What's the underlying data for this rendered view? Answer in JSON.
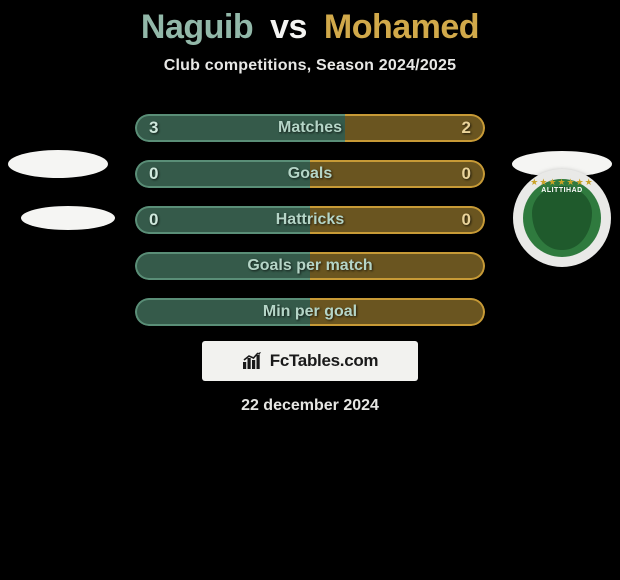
{
  "title": {
    "player1": "Naguib",
    "vs": "vs",
    "player2": "Mohamed"
  },
  "subtitle": "Club competitions, Season 2024/2025",
  "colors": {
    "left_border": "#5a8e77",
    "left_fill": "#355a4a",
    "right_border": "#c79a36",
    "right_fill": "#6a5520",
    "label": "#b5d5c7",
    "title_p1": "#92b8a9",
    "title_p2": "#d1a94a",
    "bg": "#000000"
  },
  "rows": [
    {
      "key": "matches",
      "label": "Matches",
      "left_val": "3",
      "right_val": "2",
      "left_share": 0.6,
      "right_share": 0.4
    },
    {
      "key": "goals",
      "label": "Goals",
      "left_val": "0",
      "right_val": "0",
      "left_share": 0.5,
      "right_share": 0.5
    },
    {
      "key": "hattricks",
      "label": "Hattricks",
      "left_val": "0",
      "right_val": "0",
      "left_share": 0.5,
      "right_share": 0.5
    },
    {
      "key": "goals-per-match",
      "label": "Goals per match",
      "left_val": "",
      "right_val": "",
      "left_share": 0.5,
      "right_share": 0.5
    },
    {
      "key": "min-per-goal",
      "label": "Min per goal",
      "left_val": "",
      "right_val": "",
      "left_share": 0.5,
      "right_share": 0.5
    }
  ],
  "emblem": {
    "text": "ALITTIHAD",
    "ring_color": "#2f7a3e",
    "shield_color": "#1f5a2c",
    "stars_color": "#c9a227"
  },
  "footer": {
    "brand": "FcTables.com"
  },
  "date": "22 december 2024"
}
